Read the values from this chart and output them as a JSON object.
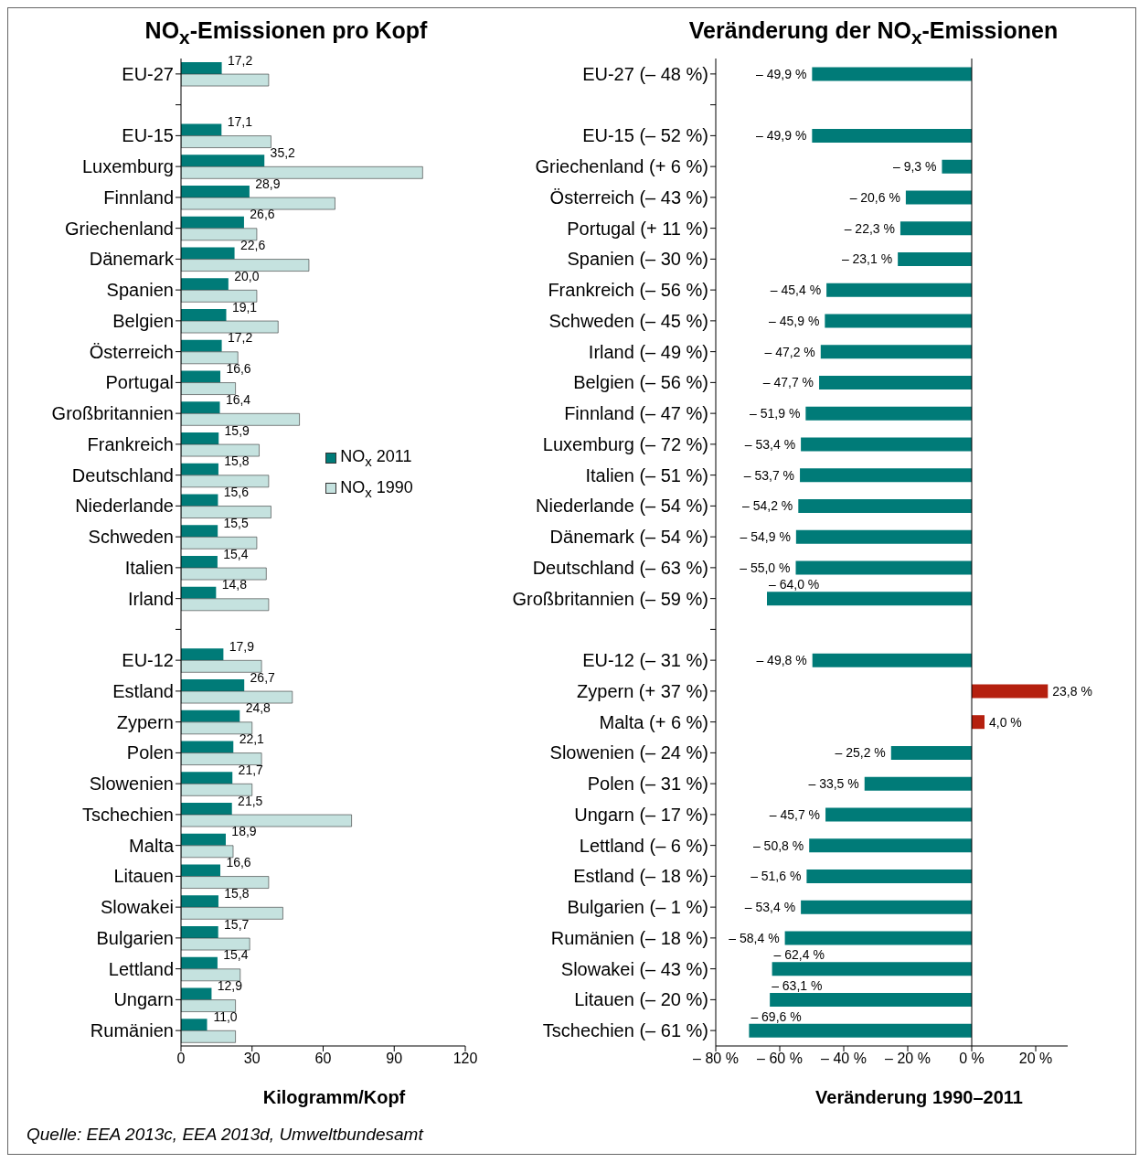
{
  "chart_data": [
    {
      "type": "bar",
      "orientation": "horizontal",
      "title": "NO$_{x}$-Emissionen pro Kopf",
      "xlabel": "Kilogramm/Kopf",
      "categories": [
        "EU-27",
        null,
        "EU-15",
        "Luxemburg",
        "Finnland",
        "Griechenland",
        "Dänemark",
        "Spanien",
        "Belgien",
        "Österreich",
        "Portugal",
        "Großbritannien",
        "Frankreich",
        "Deutschland",
        "Niederlande",
        "Schweden",
        "Italien",
        "Irland",
        null,
        "EU-12",
        "Estland",
        "Zypern",
        "Polen",
        "Slowenien",
        "Tschechien",
        "Malta",
        "Litauen",
        "Slowakei",
        "Bulgarien",
        "Lettland",
        "Ungarn",
        "Rumänien"
      ],
      "series": [
        {
          "name": "NO$_{x}$ 2011",
          "color": "#007b78",
          "values": [
            17.2,
            null,
            17.1,
            35.2,
            28.9,
            26.6,
            22.6,
            20.0,
            19.1,
            17.2,
            16.6,
            16.4,
            15.9,
            15.8,
            15.6,
            15.5,
            15.4,
            14.8,
            null,
            17.9,
            26.7,
            24.8,
            22.1,
            21.7,
            21.5,
            18.9,
            16.6,
            15.8,
            15.7,
            15.4,
            12.9,
            11.0
          ],
          "value_labels": [
            "17,2",
            null,
            "17,1",
            "35,2",
            "28,9",
            "26,6",
            "22,6",
            "20,0",
            "19,1",
            "17,2",
            "16,6",
            "16,4",
            "15,9",
            "15,8",
            "15,6",
            "15,5",
            "15,4",
            "14,8",
            null,
            "17,9",
            "26,7",
            "24,8",
            "22,1",
            "21,7",
            "21,5",
            "18,9",
            "16,6",
            "15,8",
            "15,7",
            "15,4",
            "12,9",
            "11,0"
          ]
        },
        {
          "name": "NO$_{x}$ 1990",
          "color": "#c5e2df",
          "values": [
            37,
            null,
            38,
            102,
            65,
            32,
            54,
            32,
            41,
            24,
            23,
            50,
            33,
            37,
            38,
            32,
            36,
            37,
            null,
            34,
            47,
            30,
            34,
            30,
            72,
            22,
            37,
            43,
            29,
            25,
            23,
            23
          ]
        }
      ],
      "xlim": [
        0,
        120
      ],
      "xticks": [
        0,
        30,
        60,
        90,
        120
      ],
      "grid": false,
      "legend": "right",
      "annotations": [
        "Quelle: EEA 2013c, EEA 2013d, Umweltbundesamt"
      ]
    },
    {
      "type": "bar",
      "orientation": "horizontal",
      "title": "Veränderung der NO$_{x}$-Emissionen",
      "xlabel": "Veränderung 1990–2011",
      "categories": [
        "EU-27 (– 48 %)",
        null,
        "EU-15 (– 52 %)",
        "Griechenland (+ 6 %)",
        "Österreich (– 43 %)",
        "Portugal (+ 11 %)",
        "Spanien (– 30 %)",
        "Frankreich (– 56 %)",
        "Schweden (– 45 %)",
        "Irland (– 49 %)",
        "Belgien (– 56 %)",
        "Finnland (– 47 %)",
        "Luxemburg (– 72 %)",
        "Italien (– 51 %)",
        "Niederlande (– 54 %)",
        "Dänemark (– 54 %)",
        "Deutschland (– 63 %)",
        "Großbritannien (– 59 %)",
        null,
        "EU-12 (– 31 %)",
        "Zypern (+ 37 %)",
        "Malta (+ 6 %)",
        "Slowenien (– 24 %)",
        "Polen (– 31 %)",
        "Ungarn (– 17 %)",
        "Lettland (– 6 %)",
        "Estland (– 18 %)",
        "Bulgarien (– 1 %)",
        "Rumänien (– 18 %)",
        "Slowakei (– 43 %)",
        "Litauen (– 20 %)",
        "Tschechien (– 61 %)"
      ],
      "values": [
        -49.9,
        null,
        -49.9,
        -9.3,
        -20.6,
        -22.3,
        -23.1,
        -45.4,
        -45.9,
        -47.2,
        -47.7,
        -51.9,
        -53.4,
        -53.7,
        -54.2,
        -54.9,
        -55.0,
        -64.0,
        null,
        -49.8,
        23.8,
        4.0,
        -25.2,
        -33.5,
        -45.7,
        -50.8,
        -51.6,
        -53.4,
        -58.4,
        -62.4,
        -63.1,
        -69.6
      ],
      "value_labels": [
        "– 49,9 %",
        null,
        "– 49,9 %",
        "– 9,3 %",
        "– 20,6 %",
        "– 22,3 %",
        "– 23,1 %",
        "– 45,4 %",
        "– 45,9 %",
        "– 47,2 %",
        "– 47,7 %",
        "– 51,9 %",
        "– 53,4 %",
        "– 53,7 %",
        "– 54,2 %",
        "– 54,9 %",
        "– 55,0 %",
        "– 64,0 %",
        null,
        "– 49,8 %",
        "23,8 %",
        "4,0 %",
        "– 25,2 %",
        "– 33,5 %",
        "– 45,7 %",
        "– 50,8 %",
        "– 51,6 %",
        "– 53,4 %",
        "– 58,4 %",
        "– 62,4 %",
        "– 63,1 %",
        "– 69,6 %"
      ],
      "colors": [
        "#007b78",
        "#007b78",
        "#007b78",
        "#007b78",
        "#007b78",
        "#007b78",
        "#007b78",
        "#007b78",
        "#007b78",
        "#007b78",
        "#007b78",
        "#007b78",
        "#007b78",
        "#007b78",
        "#007b78",
        "#007b78",
        "#007b78",
        "#007b78",
        "#007b78",
        "#007b78",
        "#b5200f",
        "#b5200f",
        "#007b78",
        "#007b78",
        "#007b78",
        "#007b78",
        "#007b78",
        "#007b78",
        "#007b78",
        "#007b78",
        "#007b78",
        "#007b78"
      ],
      "xlim": [
        -80,
        30
      ],
      "xticks": [
        {
          "value": -80,
          "label": "– 80 %"
        },
        {
          "value": -60,
          "label": "– 60 %"
        },
        {
          "value": -40,
          "label": "– 40 %"
        },
        {
          "value": -20,
          "label": "– 20 %"
        },
        {
          "value": 0,
          "label": "0 %"
        },
        {
          "value": 20,
          "label": "20 %"
        }
      ],
      "grid": false,
      "ref_lines": [
        {
          "axis": "x",
          "value": 0,
          "color": "#000000"
        }
      ]
    }
  ]
}
